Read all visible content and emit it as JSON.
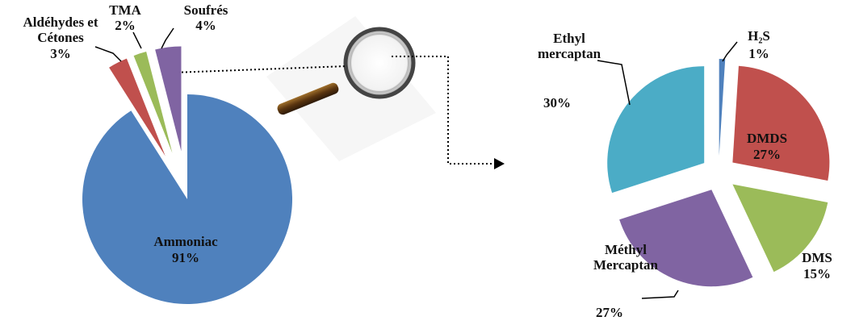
{
  "chart_data": [
    {
      "type": "pie",
      "categories": [
        "Ammoniac",
        "Aldéhydes et Cétones",
        "TMA",
        "Soufrés"
      ],
      "values": [
        91,
        3,
        2,
        4
      ],
      "value_labels": [
        "91%",
        "3%",
        "2%",
        "4%"
      ],
      "colors": [
        "#4f81bd",
        "#c0504d",
        "#9bbb59",
        "#8064a2"
      ]
    },
    {
      "type": "pie",
      "categories": [
        "H₂S",
        "DMDS",
        "DMS",
        "Méthyl Mercaptan",
        "Ethyl mercaptan"
      ],
      "values": [
        1,
        27,
        15,
        27,
        30
      ],
      "value_labels": [
        "1%",
        "27%",
        "15%",
        "27%",
        "30%"
      ],
      "colors": [
        "#4f81bd",
        "#c0504d",
        "#9bbb59",
        "#8064a2",
        "#4bacc6"
      ]
    }
  ]
}
